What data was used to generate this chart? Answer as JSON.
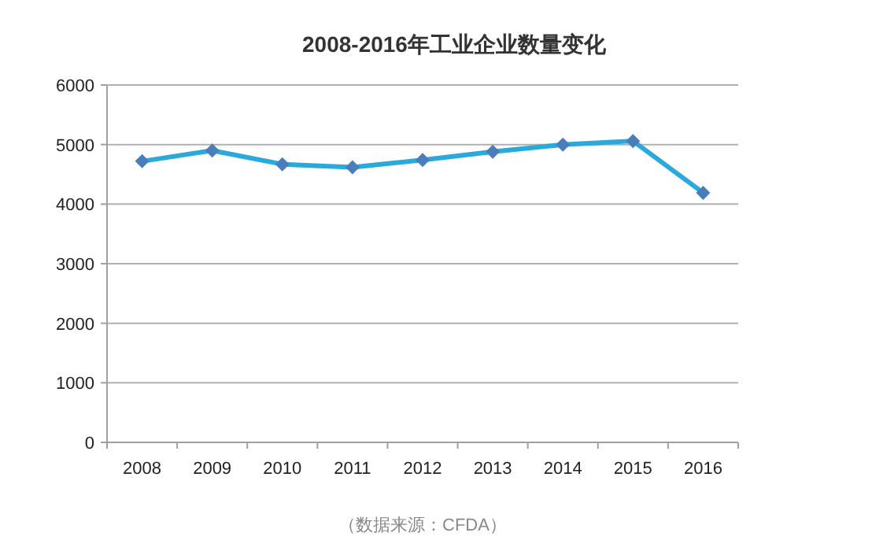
{
  "chart_data": {
    "type": "line",
    "title": "2008-2016年工业企业数量变化",
    "categories": [
      "2008",
      "2009",
      "2010",
      "2011",
      "2012",
      "2013",
      "2014",
      "2015",
      "2016"
    ],
    "series": [
      {
        "color": "#29a9dc",
        "values": [
          4720,
          4900,
          4670,
          4620,
          4740,
          4880,
          5000,
          5060,
          4190
        ]
      }
    ],
    "ylim": [
      0,
      6000
    ],
    "yticks": [
      0,
      1000,
      2000,
      3000,
      4000,
      5000,
      6000
    ],
    "grid": "y",
    "marker": "diamond",
    "annotations": [
      "（数据来源：CFDA）"
    ]
  }
}
